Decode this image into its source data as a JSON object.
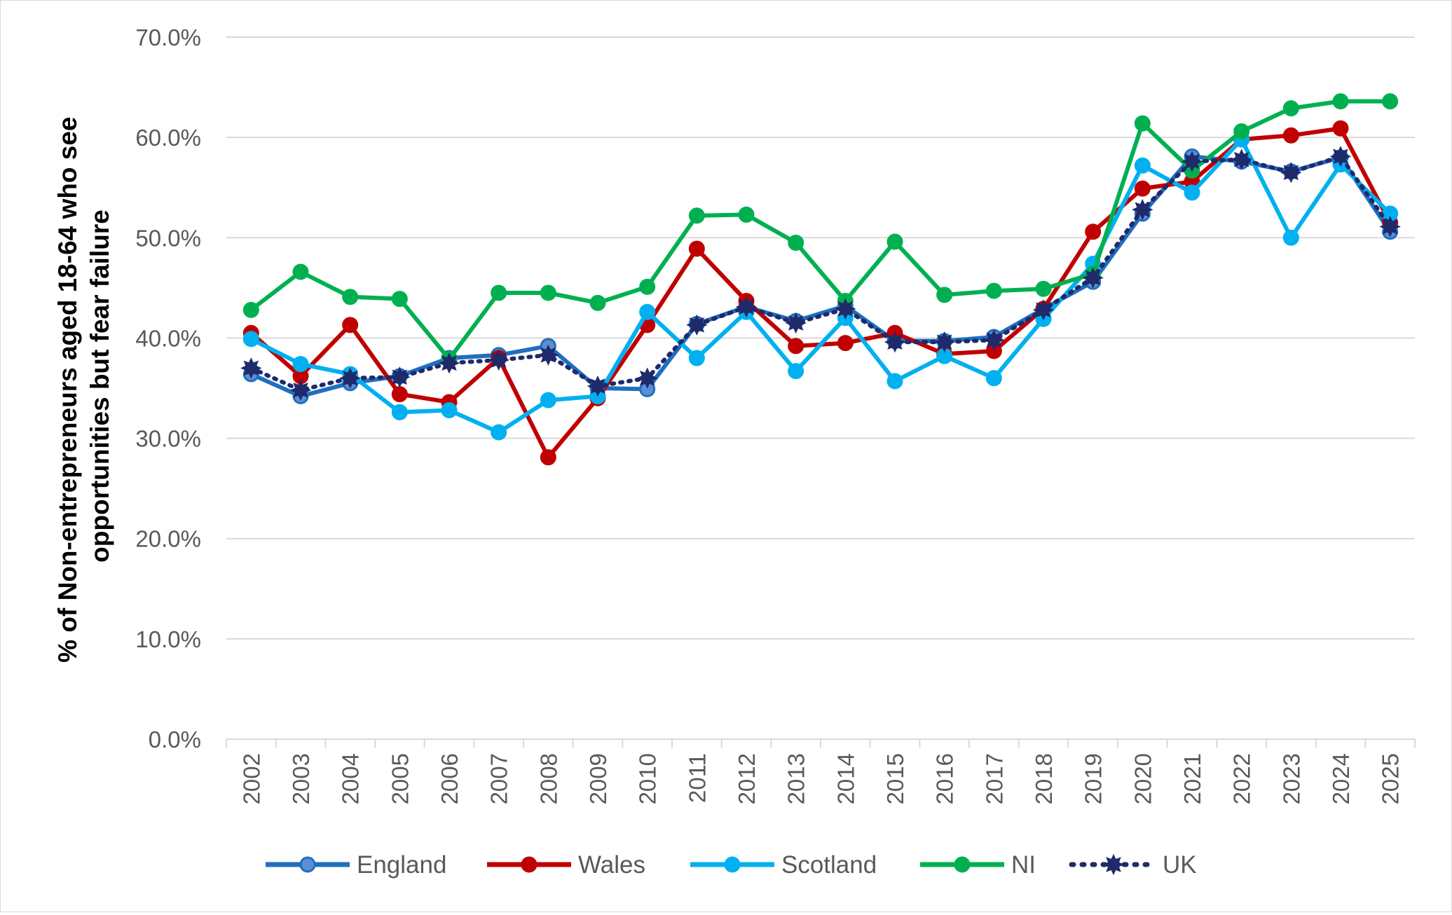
{
  "chart_data": {
    "type": "line",
    "title": "",
    "xlabel": "",
    "ylabel": "% of Non-entrepreneurs aged 18-64 who see opportunities but fear failure",
    "ylabel_lines": [
      "% of Non-entrepreneurs aged 18-64 who see",
      "opportunities but fear failure"
    ],
    "ylim": [
      0,
      70
    ],
    "yticks": [
      "0.0%",
      "10.0%",
      "20.0%",
      "30.0%",
      "40.0%",
      "50.0%",
      "60.0%",
      "70.0%"
    ],
    "grid": true,
    "legend_position": "bottom",
    "categories": [
      "2002",
      "2003",
      "2004",
      "2005",
      "2006",
      "2007",
      "2008",
      "2009",
      "2010",
      "2011",
      "2012",
      "2013",
      "2014",
      "2015",
      "2016",
      "2017",
      "2018",
      "2019",
      "2020",
      "2021",
      "2022",
      "2023",
      "2024",
      "2025"
    ],
    "series": [
      {
        "name": "England",
        "color": "#1F6FBF",
        "marker_fill": "#5B8FD4",
        "style": "solid-circle",
        "values": [
          36.4,
          34.2,
          35.5,
          36.2,
          38.0,
          38.3,
          39.2,
          35.0,
          34.9,
          41.4,
          43.1,
          41.7,
          43.2,
          39.7,
          39.7,
          40.1,
          42.9,
          45.6,
          52.4,
          58.1,
          57.6,
          56.6,
          58.0,
          50.6
        ]
      },
      {
        "name": "Wales",
        "color": "#C00000",
        "marker_fill": "#C00000",
        "style": "solid-circle",
        "values": [
          40.5,
          36.2,
          41.3,
          34.4,
          33.6,
          38.0,
          28.1,
          34.0,
          41.3,
          48.9,
          43.7,
          39.2,
          39.5,
          40.5,
          38.4,
          38.7,
          42.9,
          50.6,
          54.9,
          55.6,
          59.8,
          60.2,
          60.9,
          51.5
        ]
      },
      {
        "name": "Scotland",
        "color": "#00B0F0",
        "marker_fill": "#00B0F0",
        "style": "solid-circle",
        "values": [
          39.9,
          37.4,
          36.4,
          32.6,
          32.8,
          30.6,
          33.8,
          34.2,
          42.6,
          38.0,
          42.6,
          36.7,
          42.0,
          35.7,
          38.2,
          36.0,
          41.9,
          47.4,
          57.2,
          54.5,
          59.8,
          50.0,
          57.3,
          52.4
        ]
      },
      {
        "name": "NI",
        "color": "#00B050",
        "marker_fill": "#00B050",
        "style": "solid-circle",
        "values": [
          42.8,
          46.6,
          44.1,
          43.9,
          37.9,
          44.5,
          44.5,
          43.5,
          45.1,
          52.2,
          52.3,
          49.5,
          43.7,
          49.6,
          44.3,
          44.7,
          44.9,
          46.4,
          61.4,
          56.7,
          60.6,
          62.9,
          63.6,
          63.6
        ]
      },
      {
        "name": "UK",
        "color": "#1F2A6B",
        "marker_fill": "#1F2A6B",
        "style": "dotted-star",
        "values": [
          37.0,
          34.8,
          36.0,
          36.1,
          37.5,
          37.8,
          38.3,
          35.2,
          36.0,
          41.3,
          43.1,
          41.5,
          42.9,
          39.6,
          39.6,
          39.8,
          42.8,
          46.0,
          52.8,
          57.6,
          57.8,
          56.5,
          58.1,
          51.1
        ]
      }
    ]
  }
}
